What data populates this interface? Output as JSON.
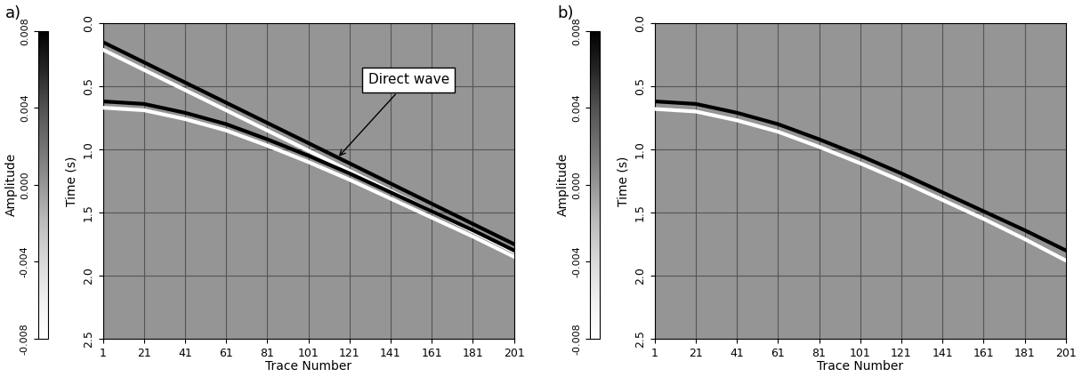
{
  "chart_data": [
    {
      "type": "line",
      "title": "a)",
      "x_label": "Trace Number",
      "y_label": "Time (s)",
      "x": [
        1,
        21,
        41,
        61,
        81,
        101,
        121,
        141,
        161,
        181,
        201
      ],
      "series": [
        {
          "color": "#000000",
          "values": [
            0.15,
            0.31,
            0.47,
            0.63,
            0.79,
            0.95,
            1.11,
            1.27,
            1.43,
            1.59,
            1.75
          ]
        },
        {
          "color": "#ffffff",
          "values": [
            0.21,
            0.37,
            0.53,
            0.69,
            0.85,
            1.01,
            1.17,
            1.33,
            1.49,
            1.65,
            1.81
          ]
        },
        {
          "color": "#000000",
          "values": [
            0.62,
            0.64,
            0.71,
            0.8,
            0.92,
            1.05,
            1.19,
            1.34,
            1.49,
            1.64,
            1.8
          ]
        },
        {
          "color": "#ffffff",
          "values": [
            0.67,
            0.69,
            0.76,
            0.85,
            0.97,
            1.1,
            1.24,
            1.39,
            1.54,
            1.69,
            1.85
          ]
        }
      ],
      "xlim": [
        1,
        201
      ],
      "xticks": [
        1,
        21,
        41,
        61,
        81,
        101,
        121,
        141,
        161,
        181,
        201
      ],
      "ylim": [
        2.5,
        0.0
      ],
      "yticks": [
        {
          "value": 0.0,
          "label": "0.0"
        },
        0.5,
        {
          "value": 1.0,
          "label": "1.0"
        },
        1.5,
        {
          "value": 2.0,
          "label": "2.0"
        },
        2.5
      ],
      "grid": true,
      "colorbar": {
        "label": "Amplitude",
        "range": [
          -0.008,
          0.008
        ],
        "ticks": [
          -0.008,
          -0.004,
          {
            "value": 0,
            "label": "0.000"
          },
          0.004,
          0.008
        ]
      },
      "annotations": [
        {
          "text": "Direct wave",
          "x": 115,
          "y": 1.07
        }
      ]
    },
    {
      "type": "line",
      "title": "b)",
      "x_label": "Trace Number",
      "y_label": "Time (s)",
      "x": [
        1,
        21,
        41,
        61,
        81,
        101,
        121,
        141,
        161,
        181,
        201
      ],
      "series": [
        {
          "color": "#000000",
          "values": [
            0.62,
            0.64,
            0.71,
            0.8,
            0.92,
            1.05,
            1.19,
            1.34,
            1.49,
            1.64,
            1.8
          ]
        },
        {
          "color": "#ffffff",
          "values": [
            0.68,
            0.7,
            0.77,
            0.86,
            0.98,
            1.11,
            1.25,
            1.4,
            1.55,
            1.71,
            1.88
          ]
        }
      ],
      "xlim": [
        1,
        201
      ],
      "xticks": [
        1,
        21,
        41,
        61,
        81,
        101,
        121,
        141,
        161,
        181,
        201
      ],
      "ylim": [
        2.5,
        0.0
      ],
      "yticks": [
        {
          "value": 0.0,
          "label": "0.0"
        },
        0.5,
        {
          "value": 1.0,
          "label": "1.0"
        },
        1.5,
        {
          "value": 2.0,
          "label": "2.0"
        },
        2.5
      ],
      "grid": true,
      "colorbar": {
        "label": "Amplitude",
        "range": [
          -0.008,
          0.008
        ],
        "ticks": [
          -0.008,
          -0.004,
          {
            "value": 0,
            "label": "0.000"
          },
          0.004,
          0.008
        ]
      }
    }
  ]
}
